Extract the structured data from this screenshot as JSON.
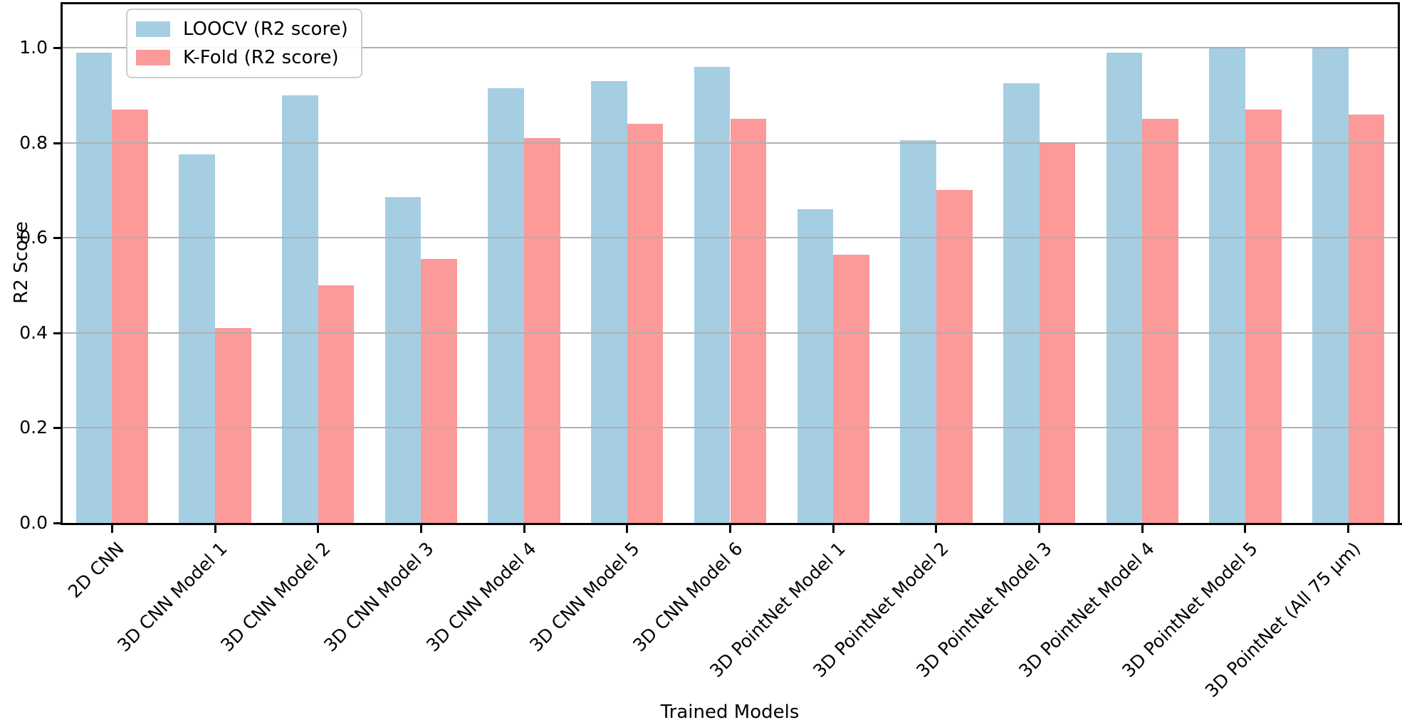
{
  "chart_data": {
    "type": "bar",
    "title": "",
    "xlabel": "Trained Models",
    "ylabel": "R2 Score",
    "ylim": [
      0,
      1.095
    ],
    "yticks": [
      0.0,
      0.2,
      0.4,
      0.6,
      0.8,
      1.0
    ],
    "ytick_labels": [
      "0.0",
      "0.2",
      "0.4",
      "0.6",
      "0.8",
      "1.0"
    ],
    "grid": true,
    "legend_position": "upper left",
    "categories": [
      "2D CNN",
      "3D CNN Model 1",
      "3D CNN Model 2",
      "3D CNN Model 3",
      "3D CNN Model 4",
      "3D CNN Model 5",
      "3D CNN Model 6",
      "3D PointNet Model 1",
      "3D PointNet Model 2",
      "3D PointNet Model 3",
      "3D PointNet Model 4",
      "3D PointNet Model 5",
      "3D PointNet (All 75 µm)"
    ],
    "series": [
      {
        "name": "LOOCV (R2 score)",
        "color": "#a6cee3",
        "values": [
          0.99,
          0.775,
          0.9,
          0.685,
          0.915,
          0.93,
          0.96,
          0.66,
          0.805,
          0.925,
          0.99,
          1.0,
          1.0
        ]
      },
      {
        "name": "K-Fold (R2 score)",
        "color": "#fb9a99",
        "values": [
          0.87,
          0.41,
          0.5,
          0.555,
          0.81,
          0.84,
          0.85,
          0.565,
          0.7,
          0.8,
          0.85,
          0.87,
          0.86
        ]
      }
    ],
    "colors": {
      "gridline": "#b0b0b0",
      "spine": "#000000",
      "text": "#000000",
      "legend_border": "#cccccc"
    }
  }
}
